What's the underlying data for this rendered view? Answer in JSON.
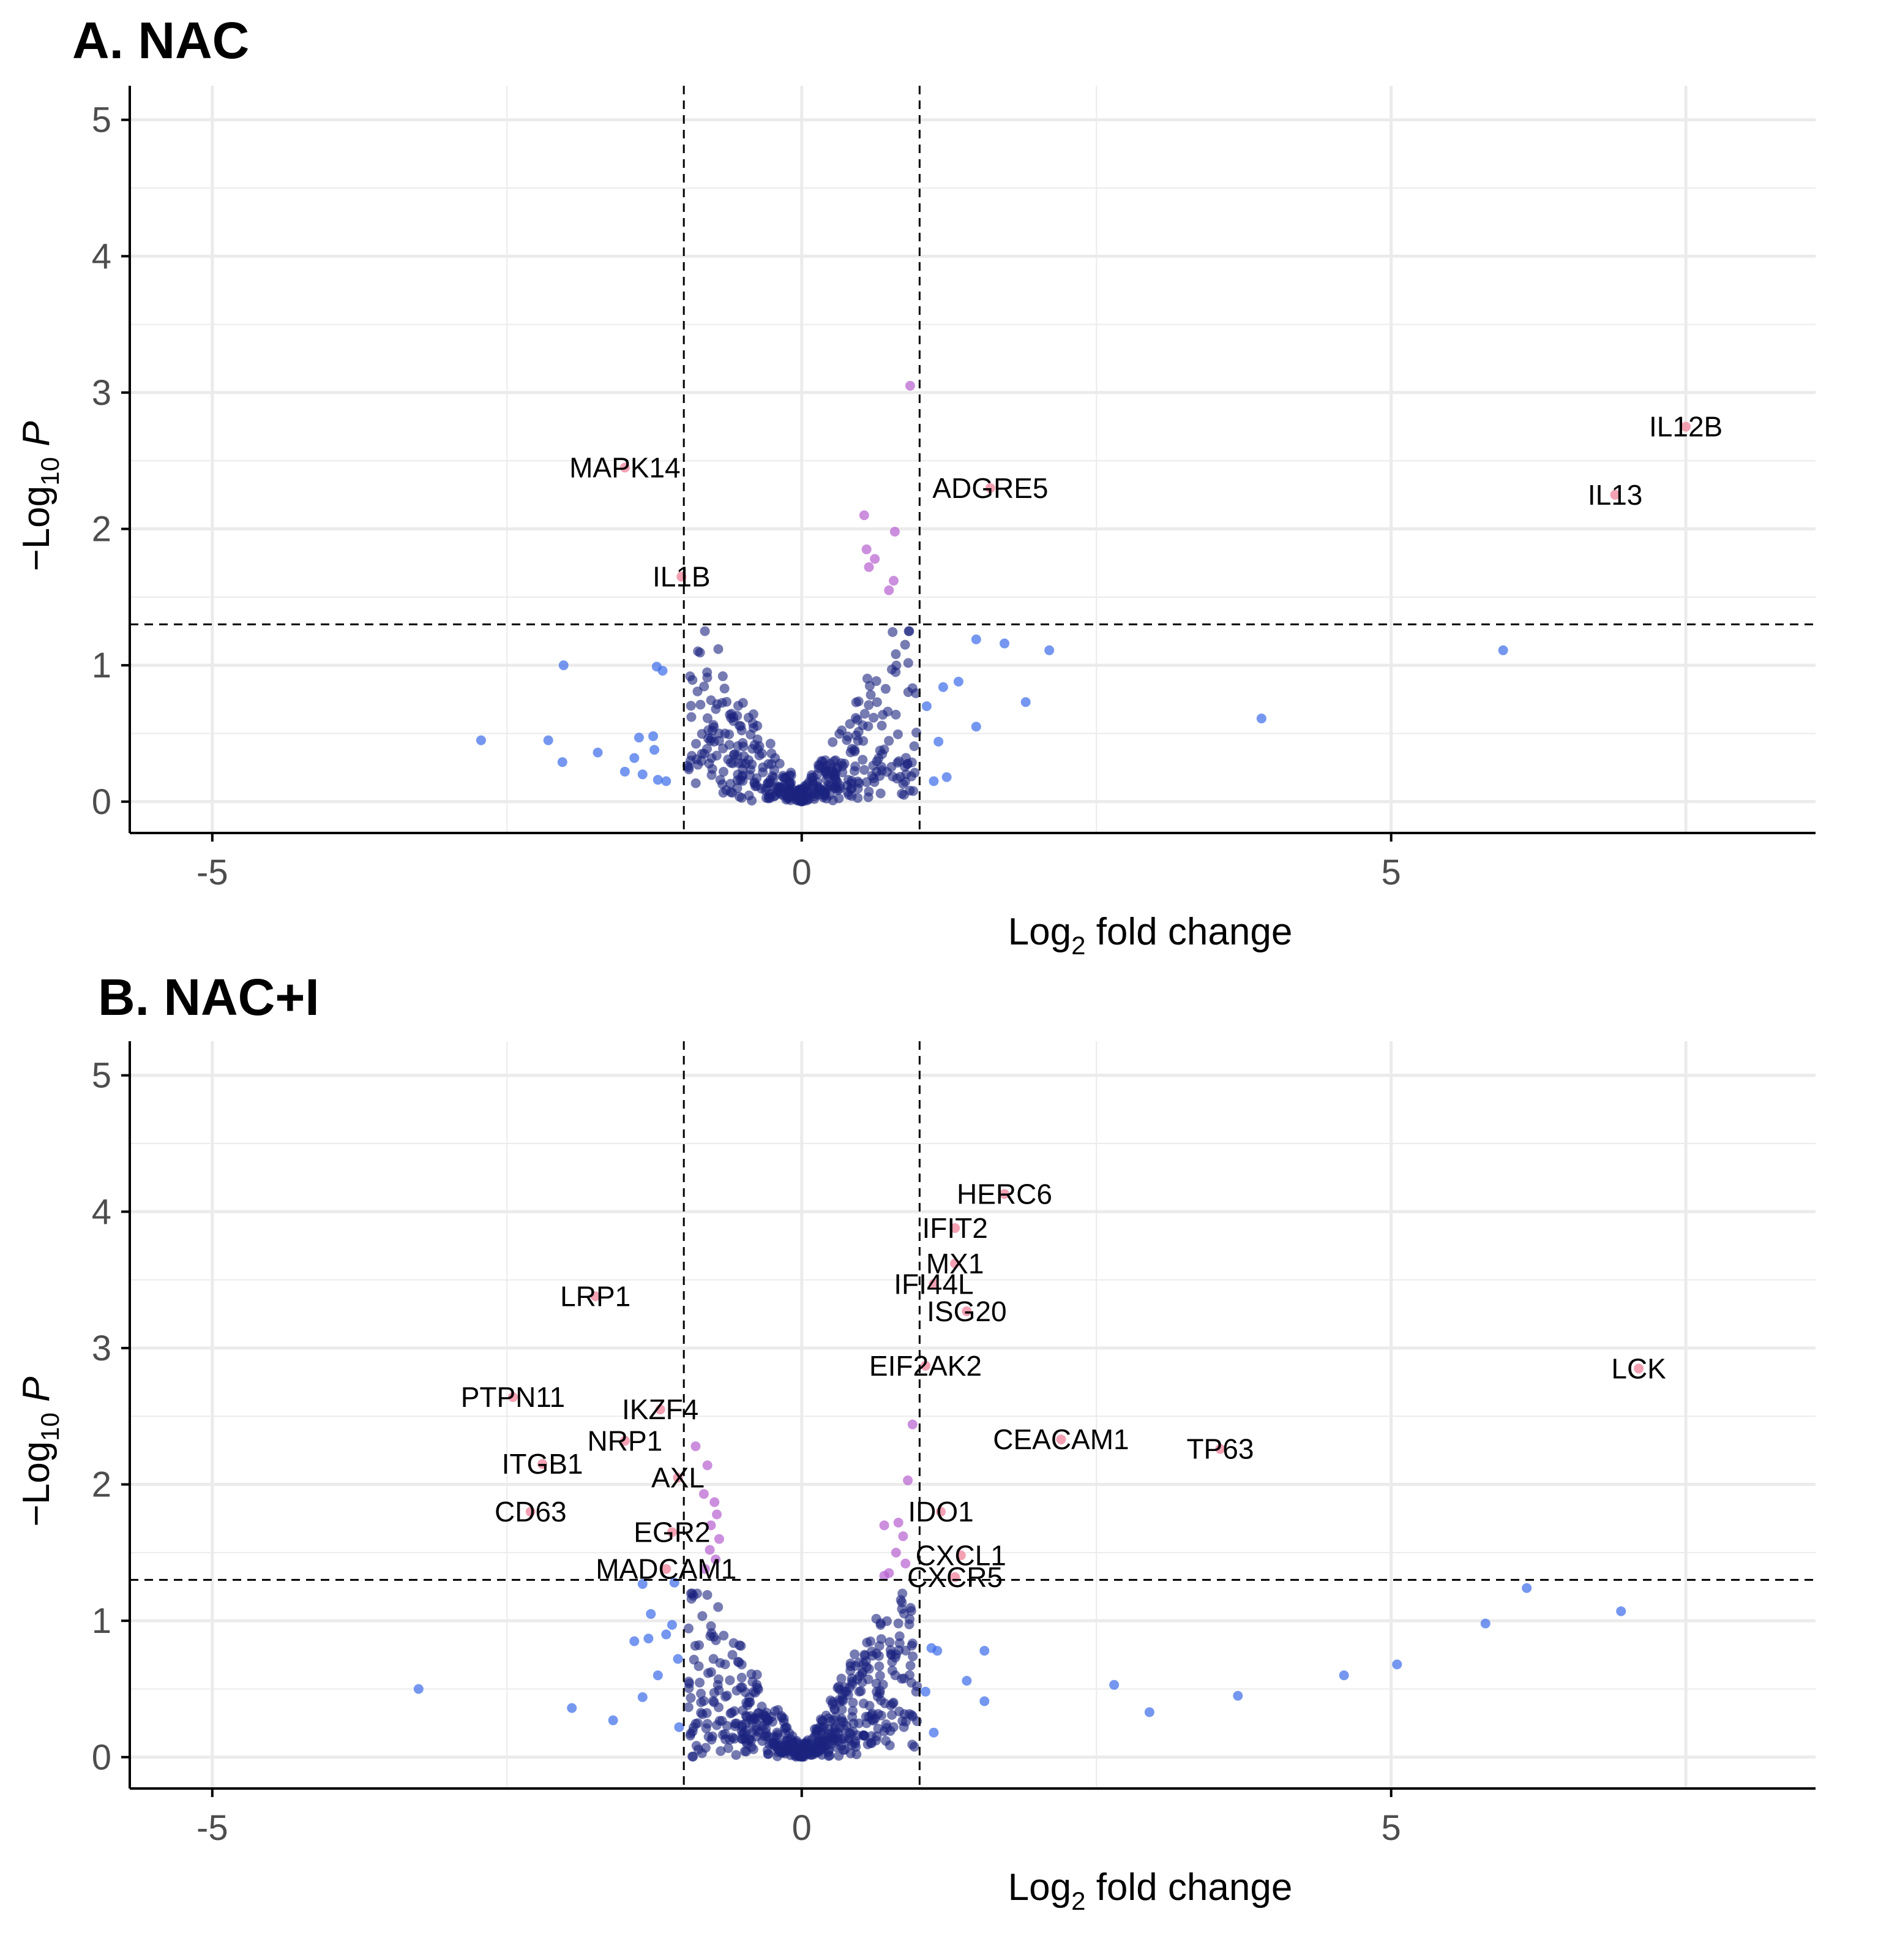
{
  "colors": {
    "ns": "#1a237e",
    "fc_only": "#3a6bea",
    "p_only": "#b65fd0",
    "both": "#f08aa0",
    "grid": "#ebebeb",
    "axis": "#000000",
    "tick_text": "#4d4d4d",
    "threshold": "#000000"
  },
  "chart_data": [
    {
      "type": "scatter",
      "title": "A. NAC",
      "xlabel_main": "Log",
      "xlabel_sub": "2",
      "xlabel_rest": " fold change",
      "ylabel_prefix": "−Log",
      "ylabel_sub": "10",
      "ylabel_italic": "P",
      "xlim": [
        -5.7,
        8.6
      ],
      "ylim": [
        -0.23,
        5.25
      ],
      "xticks": [
        -5,
        0,
        5
      ],
      "xtick_labels": [
        "-5",
        "0",
        "5"
      ],
      "yticks": [
        0,
        1,
        2,
        3,
        4,
        5
      ],
      "ytick_labels": [
        "0",
        "1",
        "2",
        "3",
        "4",
        "5"
      ],
      "fc_cutoff": 1,
      "p_cutoff": 1.3,
      "labeled_points": [
        {
          "gene": "IL12B",
          "x": 7.5,
          "y": 2.75,
          "group": "both"
        },
        {
          "gene": "IL13",
          "x": 6.9,
          "y": 2.25,
          "group": "both"
        },
        {
          "gene": "MAPK14",
          "x": -1.5,
          "y": 2.45,
          "group": "both"
        },
        {
          "gene": "ADGRE5",
          "x": 1.6,
          "y": 2.3,
          "group": "both"
        },
        {
          "gene": "IL1B",
          "x": -1.02,
          "y": 1.65,
          "group": "both"
        }
      ],
      "points": [
        {
          "x": 0.92,
          "y": 3.05,
          "g": "p_only"
        },
        {
          "x": 0.53,
          "y": 2.1,
          "g": "p_only"
        },
        {
          "x": 0.79,
          "y": 1.98,
          "g": "p_only"
        },
        {
          "x": 0.55,
          "y": 1.85,
          "g": "p_only"
        },
        {
          "x": 0.62,
          "y": 1.78,
          "g": "p_only"
        },
        {
          "x": 0.57,
          "y": 1.72,
          "g": "p_only"
        },
        {
          "x": 0.78,
          "y": 1.62,
          "g": "p_only"
        },
        {
          "x": 0.74,
          "y": 1.55,
          "g": "p_only"
        },
        {
          "x": 5.95,
          "y": 1.11,
          "g": "fc_only"
        },
        {
          "x": 3.9,
          "y": 0.61,
          "g": "fc_only"
        },
        {
          "x": 2.1,
          "y": 1.11,
          "g": "fc_only"
        },
        {
          "x": 1.72,
          "y": 1.16,
          "g": "fc_only"
        },
        {
          "x": 1.48,
          "y": 1.19,
          "g": "fc_only"
        },
        {
          "x": 1.9,
          "y": 0.73,
          "g": "fc_only"
        },
        {
          "x": 1.33,
          "y": 0.88,
          "g": "fc_only"
        },
        {
          "x": 1.2,
          "y": 0.84,
          "g": "fc_only"
        },
        {
          "x": 1.06,
          "y": 0.7,
          "g": "fc_only"
        },
        {
          "x": 1.48,
          "y": 0.55,
          "g": "fc_only"
        },
        {
          "x": 1.16,
          "y": 0.44,
          "g": "fc_only"
        },
        {
          "x": 1.23,
          "y": 0.18,
          "g": "fc_only"
        },
        {
          "x": 1.12,
          "y": 0.15,
          "g": "fc_only"
        },
        {
          "x": -2.72,
          "y": 0.45,
          "g": "fc_only"
        },
        {
          "x": -2.15,
          "y": 0.45,
          "g": "fc_only"
        },
        {
          "x": -2.03,
          "y": 0.29,
          "g": "fc_only"
        },
        {
          "x": -2.02,
          "y": 1.0,
          "g": "fc_only"
        },
        {
          "x": -1.23,
          "y": 0.99,
          "g": "fc_only"
        },
        {
          "x": -1.18,
          "y": 0.96,
          "g": "fc_only"
        },
        {
          "x": -1.73,
          "y": 0.36,
          "g": "fc_only"
        },
        {
          "x": -1.38,
          "y": 0.47,
          "g": "fc_only"
        },
        {
          "x": -1.26,
          "y": 0.48,
          "g": "fc_only"
        },
        {
          "x": -1.42,
          "y": 0.32,
          "g": "fc_only"
        },
        {
          "x": -1.5,
          "y": 0.22,
          "g": "fc_only"
        },
        {
          "x": -1.35,
          "y": 0.2,
          "g": "fc_only"
        },
        {
          "x": -1.22,
          "y": 0.16,
          "g": "fc_only"
        },
        {
          "x": -1.15,
          "y": 0.15,
          "g": "fc_only"
        },
        {
          "x": -1.25,
          "y": 0.38,
          "g": "fc_only"
        }
      ],
      "ns_cloud": {
        "count": 420,
        "seed": 7,
        "ymax": 1.25
      }
    },
    {
      "type": "scatter",
      "title": "B. NAC+I",
      "xlabel_main": "Log",
      "xlabel_sub": "2",
      "xlabel_rest": " fold change",
      "ylabel_prefix": "−Log",
      "ylabel_sub": "10",
      "ylabel_italic": "P",
      "xlim": [
        -5.7,
        8.6
      ],
      "ylim": [
        -0.23,
        5.25
      ],
      "xticks": [
        -5,
        0,
        5
      ],
      "xtick_labels": [
        "-5",
        "0",
        "5"
      ],
      "yticks": [
        0,
        1,
        2,
        3,
        4,
        5
      ],
      "ytick_labels": [
        "0",
        "1",
        "2",
        "3",
        "4",
        "5"
      ],
      "fc_cutoff": 1,
      "p_cutoff": 1.3,
      "labeled_points": [
        {
          "gene": "HERC6",
          "x": 1.72,
          "y": 4.13,
          "group": "both"
        },
        {
          "gene": "IFIT2",
          "x": 1.3,
          "y": 3.88,
          "group": "both"
        },
        {
          "gene": "MX1",
          "x": 1.3,
          "y": 3.62,
          "group": "both"
        },
        {
          "gene": "IFI44L",
          "x": 1.12,
          "y": 3.47,
          "group": "both"
        },
        {
          "gene": "ISG20",
          "x": 1.4,
          "y": 3.27,
          "group": "both"
        },
        {
          "gene": "LRP1",
          "x": -1.75,
          "y": 3.38,
          "group": "both"
        },
        {
          "gene": "EIF2AK2",
          "x": 1.05,
          "y": 2.87,
          "group": "both"
        },
        {
          "gene": "LCK",
          "x": 7.1,
          "y": 2.85,
          "group": "both"
        },
        {
          "gene": "PTPN11",
          "x": -2.45,
          "y": 2.64,
          "group": "both"
        },
        {
          "gene": "IKZF4",
          "x": -1.2,
          "y": 2.55,
          "group": "both"
        },
        {
          "gene": "NRP1",
          "x": -1.5,
          "y": 2.32,
          "group": "both"
        },
        {
          "gene": "CEACAM1",
          "x": 2.2,
          "y": 2.33,
          "group": "both"
        },
        {
          "gene": "TP63",
          "x": 3.55,
          "y": 2.26,
          "group": "both"
        },
        {
          "gene": "ITGB1",
          "x": -2.2,
          "y": 2.15,
          "group": "both"
        },
        {
          "gene": "AXL",
          "x": -1.05,
          "y": 2.05,
          "group": "both"
        },
        {
          "gene": "CD63",
          "x": -2.3,
          "y": 1.8,
          "group": "both"
        },
        {
          "gene": "IDO1",
          "x": 1.18,
          "y": 1.8,
          "group": "both"
        },
        {
          "gene": "EGR2",
          "x": -1.1,
          "y": 1.65,
          "group": "both"
        },
        {
          "gene": "CXCL1",
          "x": 1.35,
          "y": 1.48,
          "group": "both"
        },
        {
          "gene": "MADCAM1",
          "x": -1.15,
          "y": 1.38,
          "group": "both"
        },
        {
          "gene": "CXCR5",
          "x": 1.3,
          "y": 1.32,
          "group": "both"
        }
      ],
      "points": [
        {
          "x": 0.94,
          "y": 2.44,
          "g": "p_only"
        },
        {
          "x": -0.9,
          "y": 2.28,
          "g": "p_only"
        },
        {
          "x": -0.8,
          "y": 2.14,
          "g": "p_only"
        },
        {
          "x": 0.9,
          "y": 2.03,
          "g": "p_only"
        },
        {
          "x": -0.83,
          "y": 1.93,
          "g": "p_only"
        },
        {
          "x": -0.74,
          "y": 1.87,
          "g": "p_only"
        },
        {
          "x": -0.72,
          "y": 1.78,
          "g": "p_only"
        },
        {
          "x": -0.77,
          "y": 1.7,
          "g": "p_only"
        },
        {
          "x": -0.7,
          "y": 1.6,
          "g": "p_only"
        },
        {
          "x": -0.78,
          "y": 1.52,
          "g": "p_only"
        },
        {
          "x": -0.73,
          "y": 1.45,
          "g": "p_only"
        },
        {
          "x": -0.82,
          "y": 1.38,
          "g": "p_only"
        },
        {
          "x": 0.7,
          "y": 1.7,
          "g": "p_only"
        },
        {
          "x": 0.82,
          "y": 1.72,
          "g": "p_only"
        },
        {
          "x": 0.86,
          "y": 1.62,
          "g": "p_only"
        },
        {
          "x": 0.8,
          "y": 1.5,
          "g": "p_only"
        },
        {
          "x": 0.88,
          "y": 1.42,
          "g": "p_only"
        },
        {
          "x": 0.74,
          "y": 1.35,
          "g": "p_only"
        },
        {
          "x": 0.7,
          "y": 1.33,
          "g": "p_only"
        },
        {
          "x": 6.15,
          "y": 1.24,
          "g": "fc_only"
        },
        {
          "x": 6.95,
          "y": 1.07,
          "g": "fc_only"
        },
        {
          "x": 5.8,
          "y": 0.98,
          "g": "fc_only"
        },
        {
          "x": 5.05,
          "y": 0.68,
          "g": "fc_only"
        },
        {
          "x": 4.6,
          "y": 0.6,
          "g": "fc_only"
        },
        {
          "x": 3.7,
          "y": 0.45,
          "g": "fc_only"
        },
        {
          "x": 2.65,
          "y": 0.53,
          "g": "fc_only"
        },
        {
          "x": 2.95,
          "y": 0.33,
          "g": "fc_only"
        },
        {
          "x": 1.55,
          "y": 0.78,
          "g": "fc_only"
        },
        {
          "x": 1.55,
          "y": 0.41,
          "g": "fc_only"
        },
        {
          "x": 1.4,
          "y": 0.56,
          "g": "fc_only"
        },
        {
          "x": 1.1,
          "y": 0.8,
          "g": "fc_only"
        },
        {
          "x": 1.15,
          "y": 0.78,
          "g": "fc_only"
        },
        {
          "x": 1.05,
          "y": 0.48,
          "g": "fc_only"
        },
        {
          "x": 1.12,
          "y": 0.18,
          "g": "fc_only"
        },
        {
          "x": -3.25,
          "y": 0.5,
          "g": "fc_only"
        },
        {
          "x": -1.95,
          "y": 0.36,
          "g": "fc_only"
        },
        {
          "x": -1.6,
          "y": 0.27,
          "g": "fc_only"
        },
        {
          "x": -1.35,
          "y": 0.44,
          "g": "fc_only"
        },
        {
          "x": -1.42,
          "y": 0.85,
          "g": "fc_only"
        },
        {
          "x": -1.3,
          "y": 0.87,
          "g": "fc_only"
        },
        {
          "x": -1.28,
          "y": 1.05,
          "g": "fc_only"
        },
        {
          "x": -1.35,
          "y": 1.27,
          "g": "fc_only"
        },
        {
          "x": -1.15,
          "y": 0.9,
          "g": "fc_only"
        },
        {
          "x": -1.1,
          "y": 0.97,
          "g": "fc_only"
        },
        {
          "x": -1.22,
          "y": 0.6,
          "g": "fc_only"
        },
        {
          "x": -1.08,
          "y": 1.28,
          "g": "fc_only"
        },
        {
          "x": -1.05,
          "y": 0.72,
          "g": "fc_only"
        },
        {
          "x": -1.04,
          "y": 0.22,
          "g": "fc_only"
        }
      ],
      "ns_cloud": {
        "count": 520,
        "seed": 13,
        "ymax": 1.2
      }
    }
  ]
}
